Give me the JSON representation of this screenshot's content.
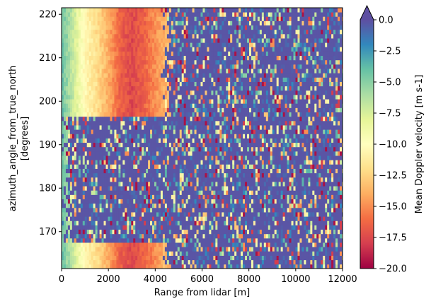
{
  "chart_data": {
    "type": "heatmap",
    "title": "",
    "xlabel": "Range from lidar [m]",
    "ylabel_line1": "azimuth_angle_from_true_north",
    "ylabel_line2": "[degrees]",
    "xlim": [
      0,
      12000
    ],
    "ylim": [
      161.5,
      221.5
    ],
    "x_ticks": [
      0,
      2000,
      4000,
      6000,
      8000,
      10000,
      12000
    ],
    "x_tick_labels": [
      "0",
      "2000",
      "4000",
      "6000",
      "8000",
      "10000",
      "12000"
    ],
    "y_ticks": [
      170,
      180,
      190,
      200,
      210,
      220
    ],
    "y_tick_labels": [
      "170",
      "180",
      "190",
      "200",
      "210",
      "220"
    ],
    "grid": false,
    "colorbar": {
      "label": "Mean Doppler velocity [m s-1]",
      "vmin": -20.0,
      "vmax": 0.0,
      "extend": "max",
      "colormap": "Spectral",
      "ticks": [
        0.0,
        -2.5,
        -5.0,
        -7.5,
        -10.0,
        -12.5,
        -15.0,
        -17.5,
        -20.0
      ],
      "tick_labels": [
        "0.0",
        "−2.5",
        "−5.0",
        "−7.5",
        "−10.0",
        "−12.5",
        "−15.0",
        "−17.5",
        "−20.0"
      ]
    },
    "azimuth_steps_deg": 1,
    "range_bin_m": 30,
    "coherent_signal_max_range_m": [
      {
        "azimuth_from": 162,
        "azimuth_to": 167,
        "range_m": 4500
      },
      {
        "azimuth_from": 168,
        "azimuth_to": 196,
        "range_m": 200
      },
      {
        "azimuth_from": 197,
        "azimuth_to": 221,
        "range_m": 4500
      }
    ],
    "velocity_profile": [
      {
        "range_m": 0,
        "velocity": -4.0
      },
      {
        "range_m": 500,
        "velocity": -7.0
      },
      {
        "range_m": 1000,
        "velocity": -10.5
      },
      {
        "range_m": 1500,
        "velocity": -12.0
      },
      {
        "range_m": 2000,
        "velocity": -14.0
      },
      {
        "range_m": 2500,
        "velocity": -16.5
      },
      {
        "range_m": 3000,
        "velocity": -17.5
      },
      {
        "range_m": 3500,
        "velocity": -16.5
      },
      {
        "range_m": 4000,
        "velocity": -15.0
      },
      {
        "range_m": 4500,
        "velocity": -13.5
      }
    ]
  }
}
